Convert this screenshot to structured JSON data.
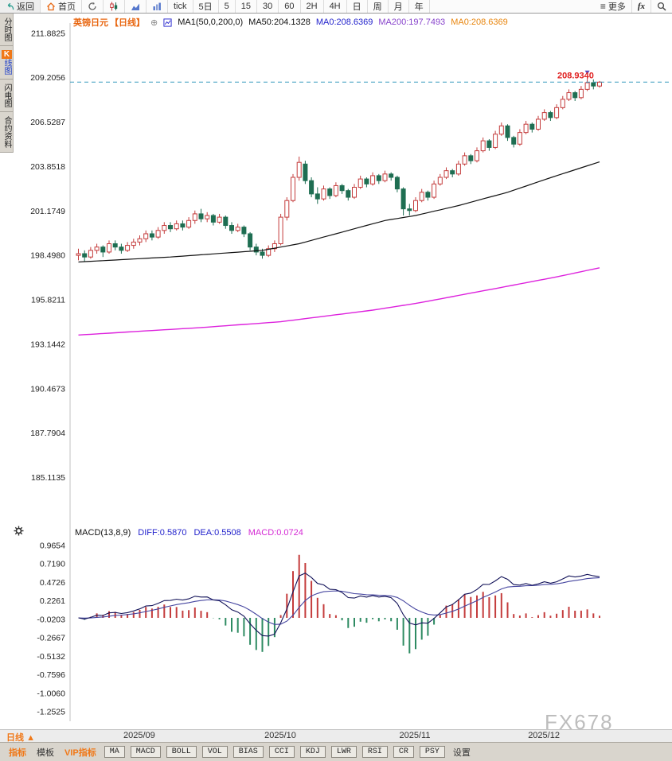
{
  "app": {
    "watermark": "FX678"
  },
  "toolbar": {
    "back": "返回",
    "home": "首页",
    "timeframes": [
      "tick",
      "5日",
      "5",
      "15",
      "30",
      "60",
      "2H",
      "4H",
      "日",
      "周",
      "月",
      "年"
    ],
    "more": "更多",
    "fx": "fx"
  },
  "sidebar": {
    "items": [
      {
        "id": "time-share",
        "label": "分时图",
        "active": false
      },
      {
        "id": "kline",
        "label": "线图",
        "badge": "K",
        "active": true
      },
      {
        "id": "flash",
        "label": "闪电图",
        "active": false
      },
      {
        "id": "contract-info",
        "label": "合约资料",
        "active": false
      }
    ]
  },
  "chart_header": {
    "symbol": "英镑日元",
    "period": "【日线】",
    "ma_settings": "MA1(50,0,200,0)",
    "ma50": "MA50:204.1328",
    "ma0_a": "MA0:208.6369",
    "ma200": "MA200:197.7493",
    "ma0_b": "MA0:208.6369"
  },
  "macd_header": {
    "title": "MACD(13,8,9)",
    "diff": "DIFF:0.5870",
    "dea": "DEA:0.5508",
    "macd": "MACD:0.0724"
  },
  "bottom": {
    "period": "日线",
    "period_arrow": "▲",
    "tabs": [
      "指标",
      "模板",
      "VIP指标"
    ],
    "indicators": [
      "MA",
      "MACD",
      "BOLL",
      "VOL",
      "BIAS",
      "CCI",
      "KDJ",
      "LWR",
      "RSI",
      "CR",
      "PSY"
    ],
    "settings": "设置"
  },
  "chart_data": {
    "type": "candlestick",
    "title": "英镑日元 日线 (GBP/JPY daily) with MA50/MA200 and MACD(13,8,9)",
    "ylim": [
      184.9,
      212.35
    ],
    "y_ticks": [
      211.8825,
      209.2056,
      206.5287,
      203.8518,
      201.1749,
      198.498,
      195.8211,
      193.1442,
      190.4673,
      187.7904,
      185.1135
    ],
    "tick_format": "4dp",
    "current_price": 208.934,
    "current_price_label": "208.9340",
    "month_tick_labels": [
      "2025/09",
      "2025/10",
      "2025/11",
      "2025/12"
    ],
    "month_tick_indices": [
      10,
      33,
      55,
      76
    ],
    "ohlc": [
      [
        198.5,
        198.9,
        198.2,
        198.6
      ],
      [
        198.6,
        198.8,
        198.1,
        198.4
      ],
      [
        198.4,
        199.0,
        198.3,
        198.8
      ],
      [
        198.8,
        199.2,
        198.6,
        199.0
      ],
      [
        199.0,
        199.1,
        198.4,
        198.7
      ],
      [
        198.7,
        199.4,
        198.6,
        199.2
      ],
      [
        199.2,
        199.4,
        198.8,
        199.0
      ],
      [
        199.0,
        199.2,
        198.6,
        198.8
      ],
      [
        198.8,
        199.3,
        198.7,
        199.1
      ],
      [
        199.1,
        199.5,
        198.9,
        199.3
      ],
      [
        199.3,
        199.7,
        199.1,
        199.5
      ],
      [
        199.5,
        200.0,
        199.3,
        199.8
      ],
      [
        199.8,
        200.0,
        199.4,
        199.6
      ],
      [
        199.6,
        200.2,
        199.5,
        200.0
      ],
      [
        200.0,
        200.5,
        199.8,
        200.3
      ],
      [
        200.3,
        200.5,
        199.9,
        200.1
      ],
      [
        200.1,
        200.6,
        200.0,
        200.4
      ],
      [
        200.4,
        200.6,
        200.0,
        200.2
      ],
      [
        200.2,
        200.8,
        200.1,
        200.6
      ],
      [
        200.6,
        201.2,
        200.4,
        201.0
      ],
      [
        201.0,
        201.3,
        200.5,
        200.7
      ],
      [
        200.7,
        201.1,
        200.5,
        200.9
      ],
      [
        200.9,
        201.0,
        200.3,
        200.5
      ],
      [
        200.5,
        201.0,
        200.4,
        200.8
      ],
      [
        200.8,
        200.9,
        200.1,
        200.3
      ],
      [
        200.3,
        200.5,
        199.8,
        200.0
      ],
      [
        200.0,
        200.4,
        199.9,
        200.2
      ],
      [
        200.2,
        200.3,
        199.6,
        199.8
      ],
      [
        199.8,
        199.9,
        198.8,
        199.0
      ],
      [
        199.0,
        199.2,
        198.5,
        198.7
      ],
      [
        198.7,
        198.9,
        198.3,
        198.5
      ],
      [
        198.5,
        199.1,
        198.4,
        198.9
      ],
      [
        198.9,
        199.4,
        198.7,
        199.2
      ],
      [
        199.2,
        201.0,
        199.1,
        200.8
      ],
      [
        200.8,
        202.0,
        200.6,
        201.8
      ],
      [
        201.8,
        203.4,
        201.7,
        203.2
      ],
      [
        203.2,
        204.45,
        203.0,
        204.1
      ],
      [
        204.0,
        204.2,
        202.8,
        203.0
      ],
      [
        203.0,
        203.2,
        202.0,
        202.2
      ],
      [
        202.2,
        202.6,
        201.6,
        201.9
      ],
      [
        201.9,
        202.7,
        201.8,
        202.5
      ],
      [
        202.5,
        202.6,
        201.9,
        202.1
      ],
      [
        202.1,
        202.9,
        202.0,
        202.7
      ],
      [
        202.7,
        202.8,
        202.2,
        202.4
      ],
      [
        202.4,
        202.5,
        201.8,
        202.0
      ],
      [
        202.0,
        202.8,
        201.9,
        202.6
      ],
      [
        202.6,
        203.3,
        202.5,
        203.1
      ],
      [
        203.1,
        203.2,
        202.6,
        202.8
      ],
      [
        202.8,
        203.5,
        202.7,
        203.3
      ],
      [
        203.3,
        203.4,
        202.8,
        203.0
      ],
      [
        203.0,
        203.6,
        202.9,
        203.4
      ],
      [
        203.4,
        203.5,
        203.0,
        203.2
      ],
      [
        203.2,
        203.3,
        202.3,
        202.5
      ],
      [
        202.5,
        202.6,
        200.9,
        201.3
      ],
      [
        201.3,
        201.6,
        200.9,
        201.2
      ],
      [
        201.2,
        202.0,
        201.1,
        201.8
      ],
      [
        201.8,
        202.5,
        201.7,
        202.3
      ],
      [
        202.3,
        202.4,
        201.8,
        202.0
      ],
      [
        202.0,
        203.0,
        201.9,
        202.8
      ],
      [
        202.8,
        203.4,
        202.7,
        203.2
      ],
      [
        203.2,
        203.8,
        203.1,
        203.6
      ],
      [
        203.6,
        203.7,
        203.2,
        203.4
      ],
      [
        203.4,
        204.2,
        203.3,
        204.0
      ],
      [
        204.0,
        204.7,
        203.9,
        204.5
      ],
      [
        204.5,
        204.6,
        204.0,
        204.2
      ],
      [
        204.2,
        205.0,
        204.1,
        204.8
      ],
      [
        204.8,
        205.6,
        204.7,
        205.4
      ],
      [
        205.4,
        205.5,
        204.8,
        205.0
      ],
      [
        205.0,
        206.0,
        204.9,
        205.8
      ],
      [
        205.8,
        206.5,
        205.7,
        206.3
      ],
      [
        206.3,
        206.4,
        205.4,
        205.6
      ],
      [
        205.6,
        205.7,
        205.0,
        205.2
      ],
      [
        205.2,
        206.1,
        205.1,
        205.9
      ],
      [
        205.9,
        206.6,
        205.8,
        206.4
      ],
      [
        206.4,
        206.5,
        205.9,
        206.1
      ],
      [
        206.1,
        206.9,
        206.0,
        206.7
      ],
      [
        206.7,
        207.3,
        206.6,
        207.1
      ],
      [
        207.1,
        207.2,
        206.6,
        206.8
      ],
      [
        206.8,
        207.6,
        206.7,
        207.4
      ],
      [
        207.4,
        208.1,
        207.3,
        207.9
      ],
      [
        207.9,
        208.5,
        207.8,
        208.3
      ],
      [
        208.3,
        208.4,
        207.8,
        208.0
      ],
      [
        208.0,
        208.7,
        207.9,
        208.5
      ],
      [
        208.5,
        209.25,
        208.4,
        208.9
      ],
      [
        208.9,
        209.1,
        208.5,
        208.7
      ],
      [
        208.7,
        209.0,
        208.6,
        208.934
      ]
    ],
    "ma50_points": [
      [
        0,
        198.1
      ],
      [
        15,
        198.4
      ],
      [
        30,
        198.8
      ],
      [
        36,
        199.2
      ],
      [
        44,
        200.0
      ],
      [
        50,
        200.6
      ],
      [
        55,
        200.9
      ],
      [
        62,
        201.5
      ],
      [
        70,
        202.3
      ],
      [
        78,
        203.3
      ],
      [
        85,
        204.13
      ]
    ],
    "ma200_points": [
      [
        0,
        193.7
      ],
      [
        20,
        194.15
      ],
      [
        33,
        194.5
      ],
      [
        48,
        195.2
      ],
      [
        55,
        195.6
      ],
      [
        68,
        196.5
      ],
      [
        78,
        197.2
      ],
      [
        85,
        197.75
      ]
    ],
    "macd": {
      "fast": 8,
      "slow": 13,
      "signal": 9,
      "y_ticks": [
        0.9654,
        0.719,
        0.4726,
        0.2261,
        -0.0203,
        -0.2667,
        -0.5132,
        -0.7596,
        -1.006,
        -1.2525
      ],
      "diff_last": 0.587,
      "dea_last": 0.5508,
      "hist_last": 0.0724
    },
    "colors": {
      "up": "#c43c3c",
      "down": "#1e6e52",
      "ma50_line": "#111111",
      "ma200_line": "#dd22dd",
      "diff_line": "#14145a",
      "dea_line": "#4646a0",
      "hist_up": "#c43c3c",
      "hist_down": "#2e8b62",
      "price_line": "#3d9dbf",
      "price_label": "#e02020",
      "accent_orange": "#f07818"
    }
  }
}
